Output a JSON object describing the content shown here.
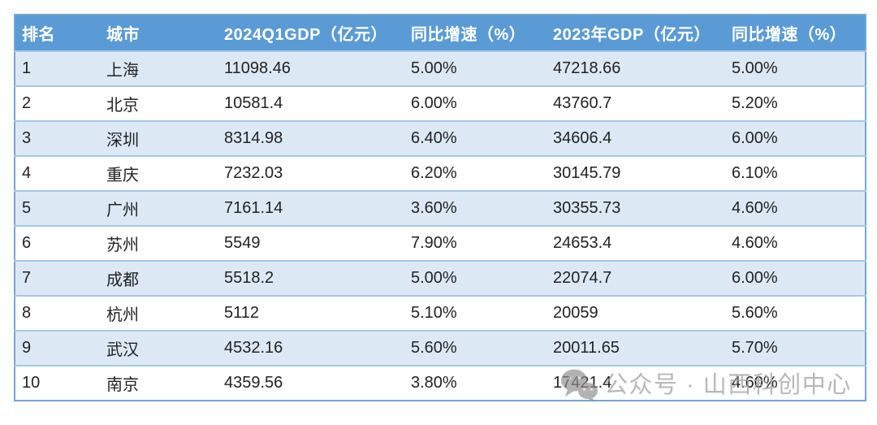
{
  "chart_data": {
    "type": "table",
    "columns": [
      "排名",
      "城市",
      "2024Q1GDP（亿元）",
      "同比增速（%）",
      "2023年GDP（亿元）",
      "同比增速（%）"
    ],
    "column_keys": [
      "rank",
      "city",
      "gdp-2024q1",
      "yoy-2024q1",
      "gdp-2023",
      "yoy-2023"
    ],
    "rows": [
      [
        "1",
        "上海",
        "11098.46",
        "5.00%",
        "47218.66",
        "5.00%"
      ],
      [
        "2",
        "北京",
        "10581.4",
        "6.00%",
        "43760.7",
        "5.20%"
      ],
      [
        "3",
        "深圳",
        "8314.98",
        "6.40%",
        "34606.4",
        "6.00%"
      ],
      [
        "4",
        "重庆",
        "7232.03",
        "6.20%",
        "30145.79",
        "6.10%"
      ],
      [
        "5",
        "广州",
        "7161.14",
        "3.60%",
        "30355.73",
        "4.60%"
      ],
      [
        "6",
        "苏州",
        "5549",
        "7.90%",
        "24653.4",
        "4.60%"
      ],
      [
        "7",
        "成都",
        "5518.2",
        "5.00%",
        "22074.7",
        "6.00%"
      ],
      [
        "8",
        "杭州",
        "5112",
        "5.10%",
        "20059",
        "5.60%"
      ],
      [
        "9",
        "武汉",
        "4532.16",
        "5.60%",
        "20011.65",
        "5.70%"
      ],
      [
        "10",
        "南京",
        "4359.56",
        "3.80%",
        "17421.4",
        "4.60%"
      ]
    ]
  },
  "watermark": {
    "icon": "wechat-icon",
    "label": "公众号 · 山西科创中心",
    "color": "#a6a6a6"
  },
  "colors": {
    "header_bg": "#5b9bd5",
    "header_text": "#ffffff",
    "row_alt_bg": "#dce9f5",
    "row_bg": "#ffffff",
    "row_border": "#a5c7e6",
    "outer_border": "#76a5d3",
    "cell_text": "#222222"
  }
}
